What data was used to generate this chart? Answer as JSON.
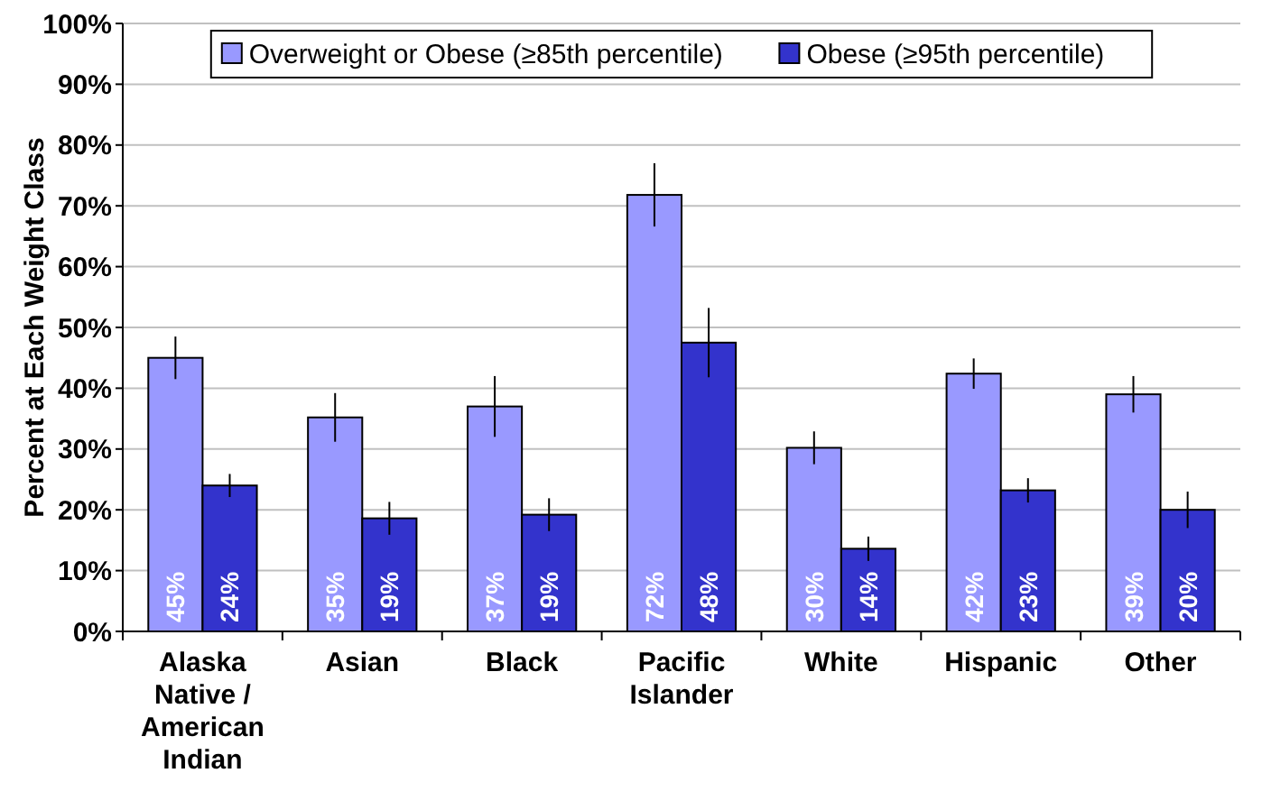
{
  "chart_data": {
    "type": "bar",
    "ylabel": "Percent at Each Weight Class",
    "categories": [
      "Alaska Native / American Indian",
      "Asian",
      "Black",
      "Pacific Islander",
      "White",
      "Hispanic",
      "Other"
    ],
    "series": [
      {
        "name": "Overweight or Obese (≥85th percentile)",
        "color": "#9999ff",
        "values": [
          45,
          35.2,
          37,
          71.8,
          30.2,
          42.4,
          39
        ],
        "errors": [
          3.5,
          4,
          5,
          5.2,
          2.7,
          2.5,
          3
        ],
        "value_labels": [
          "45%",
          "35%",
          "37%",
          "72%",
          "30%",
          "42%",
          "39%"
        ]
      },
      {
        "name": "Obese (≥95th percentile)",
        "color": "#3333cc",
        "values": [
          24,
          18.6,
          19.2,
          47.5,
          13.6,
          23.2,
          20
        ],
        "errors": [
          1.9,
          2.7,
          2.7,
          5.7,
          2,
          2,
          3
        ],
        "value_labels": [
          "24%",
          "19%",
          "19%",
          "48%",
          "14%",
          "23%",
          "20%"
        ]
      }
    ],
    "ylim": [
      0,
      100
    ],
    "yticks": [
      {
        "value": 0,
        "label": "0%"
      },
      {
        "value": 10,
        "label": "10%"
      },
      {
        "value": 20,
        "label": "20%"
      },
      {
        "value": 30,
        "label": "30%"
      },
      {
        "value": 40,
        "label": "40%"
      },
      {
        "value": 50,
        "label": "50%"
      },
      {
        "value": 60,
        "label": "60%"
      },
      {
        "value": 70,
        "label": "70%"
      },
      {
        "value": 80,
        "label": "80%"
      },
      {
        "value": 90,
        "label": "90%"
      },
      {
        "value": 100,
        "label": "100%"
      }
    ],
    "grid": "y",
    "legend": "top"
  }
}
